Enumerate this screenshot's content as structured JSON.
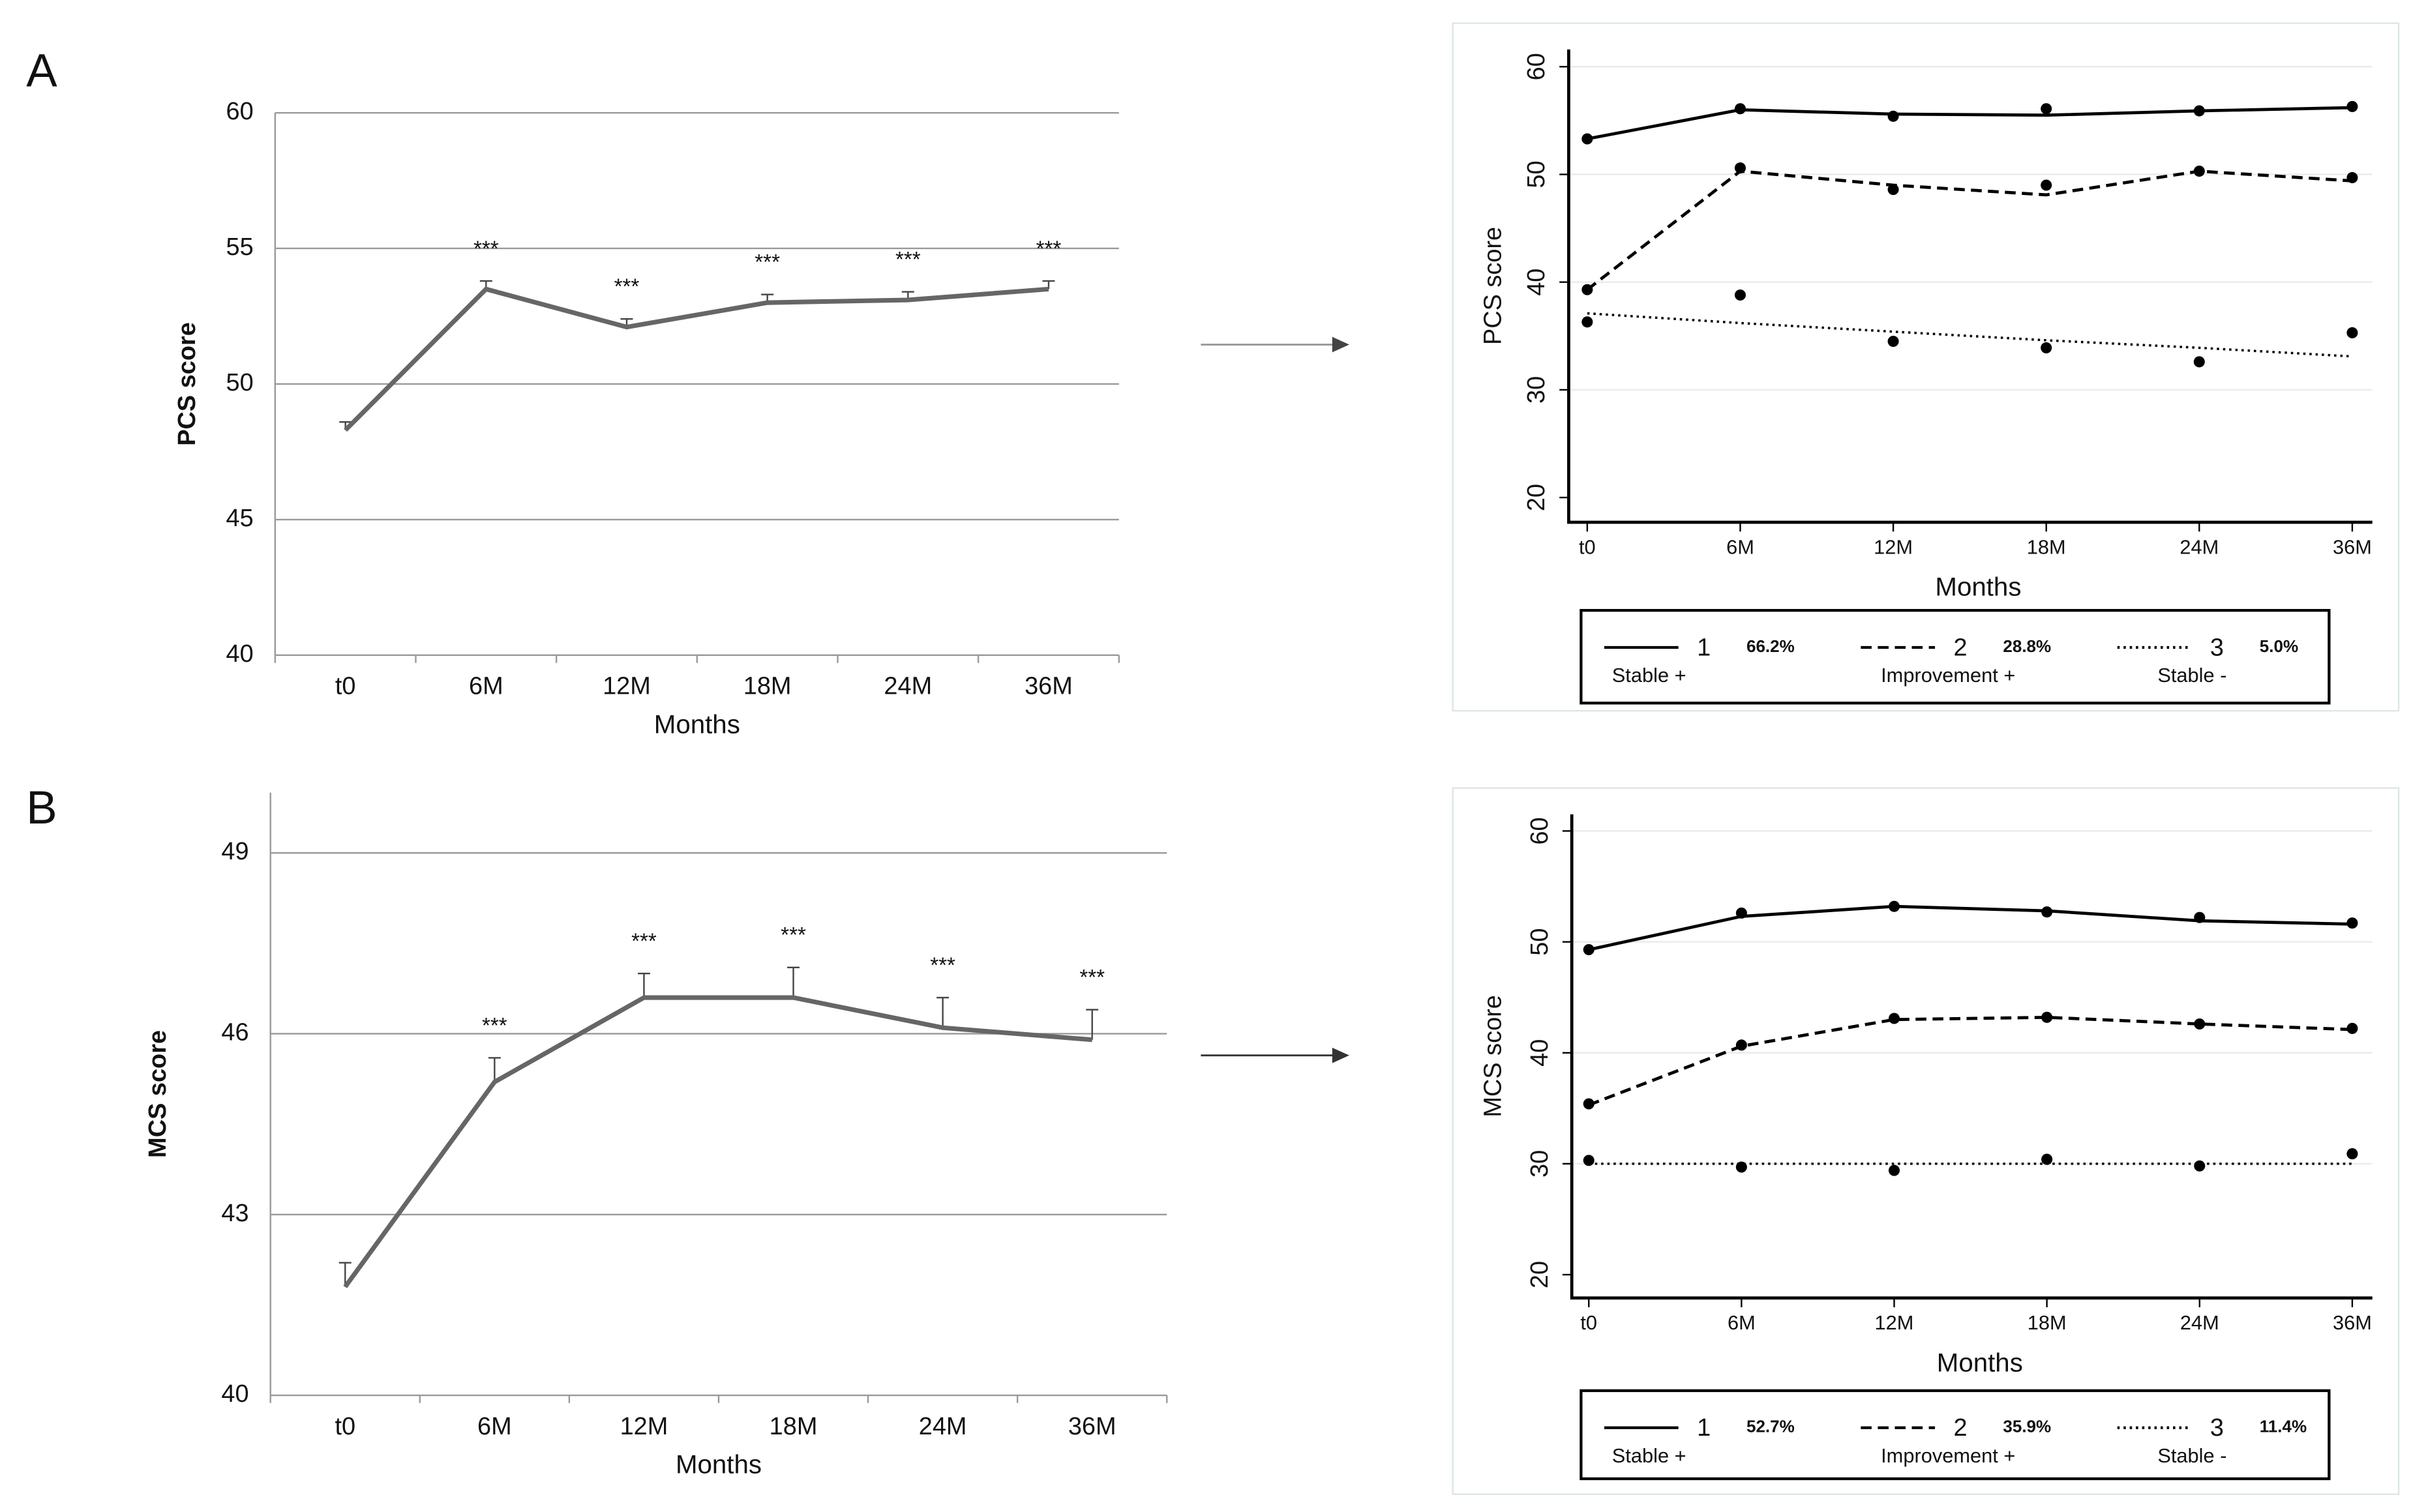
{
  "chart_data": [
    {
      "type": "line",
      "panel_label": "A",
      "y_label": "PCS score",
      "x_label": "Months",
      "categories": [
        "t0",
        "6M",
        "12M",
        "18M",
        "24M",
        "36M"
      ],
      "values": [
        48.3,
        53.5,
        52.1,
        53.0,
        53.1,
        53.5
      ],
      "errors": [
        0.3,
        0.3,
        0.3,
        0.3,
        0.3,
        0.3
      ],
      "annotations": [
        null,
        "***",
        "***",
        "***",
        "***",
        "***"
      ],
      "color": "#666666",
      "ylim": [
        40,
        60
      ],
      "yticks": [
        40,
        45,
        50,
        55,
        60
      ],
      "grid": true
    },
    {
      "type": "line",
      "y_label": "PCS score",
      "x_label": "Months",
      "categories": [
        "t0",
        "6M",
        "12M",
        "18M",
        "24M",
        "36M"
      ],
      "series": [
        {
          "name": "1",
          "share": "66.2%",
          "label": "Stable +",
          "dash": "solid",
          "color": "#000000",
          "values": [
            53.3,
            56.0,
            55.6,
            55.5,
            55.9,
            56.2
          ],
          "observed": [
            53.3,
            56.1,
            55.4,
            56.1,
            55.9,
            56.3
          ]
        },
        {
          "name": "2",
          "share": "28.8%",
          "label": "Improvement +",
          "dash": "dash",
          "color": "#000000",
          "values": [
            39.3,
            50.3,
            49.0,
            48.1,
            50.3,
            49.4
          ],
          "observed": [
            39.3,
            50.6,
            48.6,
            49.0,
            50.3,
            49.7
          ]
        },
        {
          "name": "3",
          "share": "5.0%",
          "label": "Stable -",
          "dash": "dot",
          "color": "#000000",
          "values": [
            37.1,
            36.2,
            35.4,
            34.6,
            33.9,
            33.1
          ],
          "observed": [
            36.3,
            38.8,
            34.5,
            33.9,
            32.6,
            35.3
          ]
        }
      ],
      "ylim": [
        17.7,
        61.6
      ],
      "yticks": [
        20,
        30,
        40,
        50,
        60
      ],
      "grid": true
    },
    {
      "type": "line",
      "panel_label": "B",
      "y_label": "MCS score",
      "x_label": "Months",
      "categories": [
        "t0",
        "6M",
        "12M",
        "18M",
        "24M",
        "36M"
      ],
      "values": [
        41.8,
        45.2,
        46.6,
        46.6,
        46.1,
        45.9
      ],
      "errors": [
        0.4,
        0.4,
        0.4,
        0.5,
        0.5,
        0.5
      ],
      "annotations": [
        null,
        "***",
        "***",
        "***",
        "***",
        "***"
      ],
      "color": "#666666",
      "ylim": [
        40,
        49
      ],
      "yticks": [
        40,
        43,
        46,
        49
      ],
      "grid": true
    },
    {
      "type": "line",
      "y_label": "MCS score",
      "x_label": "Months",
      "categories": [
        "t0",
        "6M",
        "12M",
        "18M",
        "24M",
        "36M"
      ],
      "series": [
        {
          "name": "1",
          "share": "52.7%",
          "label": "Stable +",
          "dash": "solid",
          "color": "#000000",
          "values": [
            49.3,
            52.3,
            53.2,
            52.8,
            51.9,
            51.6
          ],
          "observed": [
            49.3,
            52.6,
            53.2,
            52.7,
            52.2,
            51.7
          ]
        },
        {
          "name": "2",
          "share": "35.9%",
          "label": "Improvement +",
          "dash": "dash",
          "color": "#000000",
          "values": [
            35.3,
            40.6,
            43.0,
            43.2,
            42.6,
            42.1
          ],
          "observed": [
            35.4,
            40.7,
            43.1,
            43.2,
            42.6,
            42.2
          ]
        },
        {
          "name": "3",
          "share": "11.4%",
          "label": "Stable -",
          "dash": "dot",
          "color": "#000000",
          "values": [
            30.0,
            30.0,
            30.0,
            30.0,
            30.0,
            30.0
          ],
          "observed": [
            30.3,
            29.7,
            29.4,
            30.4,
            29.8,
            30.9
          ]
        }
      ],
      "ylim": [
        17.9,
        61.5
      ],
      "yticks": [
        20,
        30,
        40,
        50,
        60
      ],
      "grid": true
    }
  ]
}
